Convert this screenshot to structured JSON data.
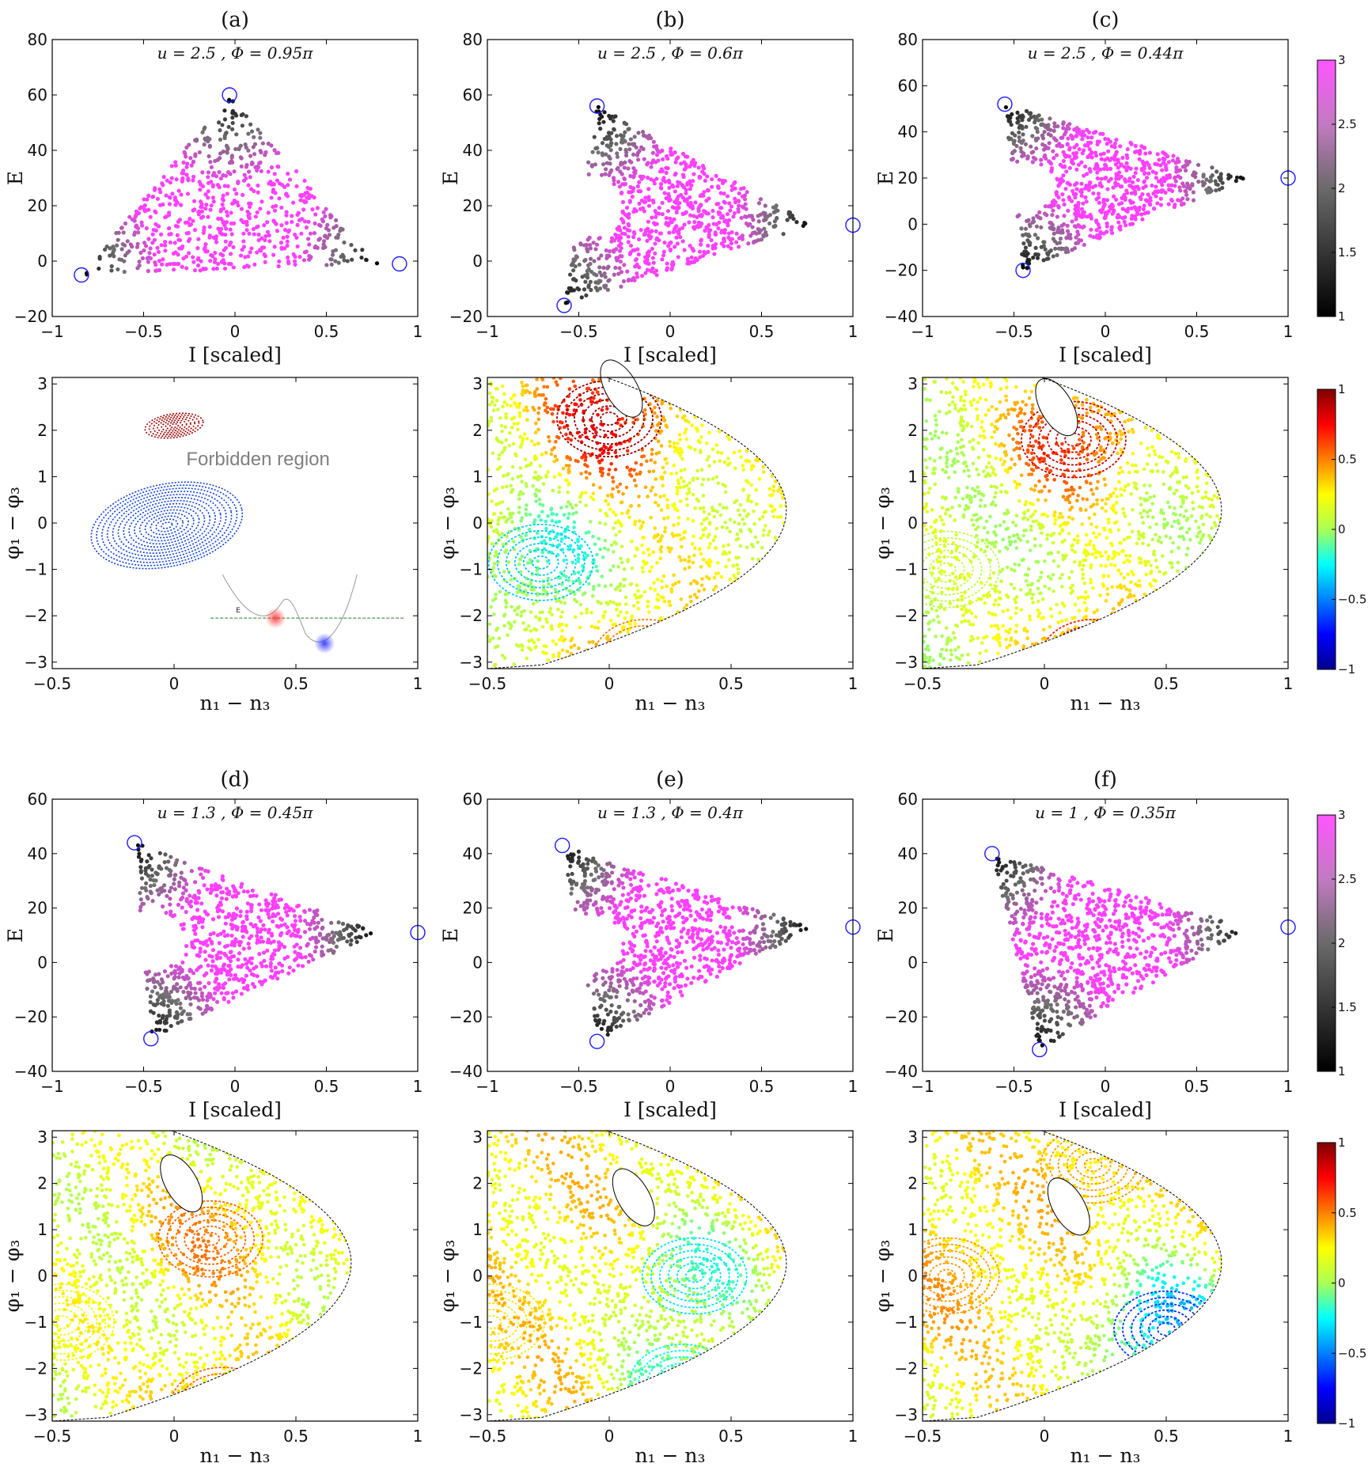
{
  "chart_data": [
    {
      "type": "scatter",
      "panel": "(a)",
      "title": "u = 2.5 , Φ = 0.95π",
      "xlabel": "I [scaled]",
      "ylabel": "E",
      "xlim": [
        -1,
        1
      ],
      "ylim": [
        -20,
        80
      ],
      "xticks": [
        "−1",
        "−0.5",
        "0",
        "0.5",
        "1"
      ],
      "yticks": [
        "−20",
        "0",
        "20",
        "40",
        "60",
        "80"
      ],
      "circles": [
        [
          -0.03,
          60
        ],
        [
          -0.84,
          -5
        ],
        [
          0.9,
          -1
        ]
      ]
    },
    {
      "type": "scatter",
      "panel": "(b)",
      "title": "u = 2.5 , Φ = 0.6π",
      "xlabel": "I [scaled]",
      "ylabel": "E",
      "xlim": [
        -1,
        1
      ],
      "ylim": [
        -20,
        80
      ],
      "xticks": [
        "−1",
        "−0.5",
        "0",
        "0.5",
        "1"
      ],
      "yticks": [
        "−20",
        "0",
        "20",
        "40",
        "60",
        "80"
      ],
      "circles": [
        [
          -0.4,
          56
        ],
        [
          -0.58,
          -16
        ],
        [
          1.0,
          13
        ]
      ]
    },
    {
      "type": "scatter",
      "panel": "(c)",
      "title": "u = 2.5 , Φ = 0.44π",
      "xlabel": "I [scaled]",
      "ylabel": "E",
      "xlim": [
        -1,
        1
      ],
      "ylim": [
        -40,
        80
      ],
      "xticks": [
        "−1",
        "−0.5",
        "0",
        "0.5",
        "1"
      ],
      "yticks": [
        "−40",
        "−20",
        "0",
        "20",
        "40",
        "60",
        "80"
      ],
      "circles": [
        [
          -0.55,
          52
        ],
        [
          -0.45,
          -20
        ],
        [
          1.0,
          20
        ]
      ]
    },
    {
      "type": "scatter",
      "panel": "(d)",
      "title": "u = 1.3 , Φ = 0.45π",
      "xlabel": "I [scaled]",
      "ylabel": "E",
      "xlim": [
        -1,
        1
      ],
      "ylim": [
        -40,
        60
      ],
      "xticks": [
        "−1",
        "−0.5",
        "0",
        "0.5",
        "1"
      ],
      "yticks": [
        "−40",
        "−20",
        "0",
        "20",
        "40",
        "60"
      ],
      "circles": [
        [
          -0.55,
          44
        ],
        [
          -0.46,
          -28
        ],
        [
          1.0,
          11
        ]
      ]
    },
    {
      "type": "scatter",
      "panel": "(e)",
      "title": "u = 1.3 , Φ = 0.4π",
      "xlabel": "I [scaled]",
      "ylabel": "E",
      "xlim": [
        -1,
        1
      ],
      "ylim": [
        -40,
        60
      ],
      "xticks": [
        "−1",
        "−0.5",
        "0",
        "0.5",
        "1"
      ],
      "yticks": [
        "−40",
        "−20",
        "0",
        "20",
        "40",
        "60"
      ],
      "circles": [
        [
          -0.59,
          43
        ],
        [
          -0.4,
          -29
        ],
        [
          1.0,
          13
        ]
      ]
    },
    {
      "type": "scatter",
      "panel": "(f)",
      "title": "u = 1 , Φ = 0.35π",
      "xlabel": "I [scaled]",
      "ylabel": "E",
      "xlim": [
        -1,
        1
      ],
      "ylim": [
        -40,
        60
      ],
      "xticks": [
        "−1",
        "−0.5",
        "0",
        "0.5",
        "1"
      ],
      "yticks": [
        "−40",
        "−20",
        "0",
        "20",
        "40",
        "60"
      ],
      "circles": [
        [
          -0.62,
          40
        ],
        [
          -0.36,
          -32
        ],
        [
          1.0,
          13
        ]
      ]
    },
    {
      "type": "scatter",
      "panel": "(a)-poincare",
      "xlabel": "n₁ − n₃",
      "ylabel": "φ₁ − φ₃",
      "xlim": [
        -0.5,
        1
      ],
      "ylim": [
        -3.14,
        3.14
      ],
      "xticks": [
        "−0.5",
        "0",
        "0.5",
        "1"
      ],
      "yticks": [
        "−3",
        "−2",
        "−1",
        "0",
        "1",
        "2",
        "3"
      ],
      "annotation": "Forbidden region",
      "inset_label": "E"
    },
    {
      "type": "scatter",
      "panel": "(b)-poincare",
      "xlabel": "n₁ − n₃",
      "ylabel": "φ₁ − φ₃",
      "xlim": [
        -0.5,
        1
      ],
      "ylim": [
        -3.14,
        3.14
      ],
      "xticks": [
        "−0.5",
        "0",
        "0.5",
        "1"
      ],
      "yticks": [
        "−3",
        "−2",
        "−1",
        "0",
        "1",
        "2",
        "3"
      ]
    },
    {
      "type": "scatter",
      "panel": "(c)-poincare",
      "xlabel": "n₁ − n₃",
      "ylabel": "φ₁ − φ₃",
      "xlim": [
        -0.5,
        1
      ],
      "ylim": [
        -3.14,
        3.14
      ],
      "xticks": [
        "−0.5",
        "0",
        "0.5",
        "1"
      ],
      "yticks": [
        "−3",
        "−2",
        "−1",
        "0",
        "1",
        "2",
        "3"
      ]
    },
    {
      "type": "scatter",
      "panel": "(d)-poincare",
      "xlabel": "n₁ − n₃",
      "ylabel": "φ₁ − φ₃",
      "xlim": [
        -0.5,
        1
      ],
      "ylim": [
        -3.14,
        3.14
      ],
      "xticks": [
        "−0.5",
        "0",
        "0.5",
        "1"
      ],
      "yticks": [
        "−3",
        "−2",
        "−1",
        "0",
        "1",
        "2",
        "3"
      ]
    },
    {
      "type": "scatter",
      "panel": "(e)-poincare",
      "xlabel": "n₁ − n₃",
      "ylabel": "φ₁ − φ₃",
      "xlim": [
        -0.5,
        1
      ],
      "ylim": [
        -3.14,
        3.14
      ],
      "xticks": [
        "−0.5",
        "0",
        "0.5",
        "1"
      ],
      "yticks": [
        "−3",
        "−2",
        "−1",
        "0",
        "1",
        "2",
        "3"
      ]
    },
    {
      "type": "scatter",
      "panel": "(f)-poincare",
      "xlabel": "n₁ − n₃",
      "ylabel": "φ₁ − φ₃",
      "xlim": [
        -0.5,
        1
      ],
      "ylim": [
        -3.14,
        3.14
      ],
      "xticks": [
        "−0.5",
        "0",
        "0.5",
        "1"
      ],
      "yticks": [
        "−3",
        "−2",
        "−1",
        "0",
        "1",
        "2",
        "3"
      ]
    }
  ],
  "colorbars": {
    "energy": {
      "ticks": [
        "1",
        "1.5",
        "2",
        "2.5",
        "3"
      ],
      "range": [
        1,
        3
      ]
    },
    "poincare": {
      "ticks": [
        "−1",
        "−0.5",
        "0",
        "0.5",
        "1"
      ],
      "range": [
        -1,
        1
      ]
    }
  },
  "colors": {
    "circle": "#1a1aff",
    "magenta": "#ff44ff",
    "black": "#000000"
  }
}
